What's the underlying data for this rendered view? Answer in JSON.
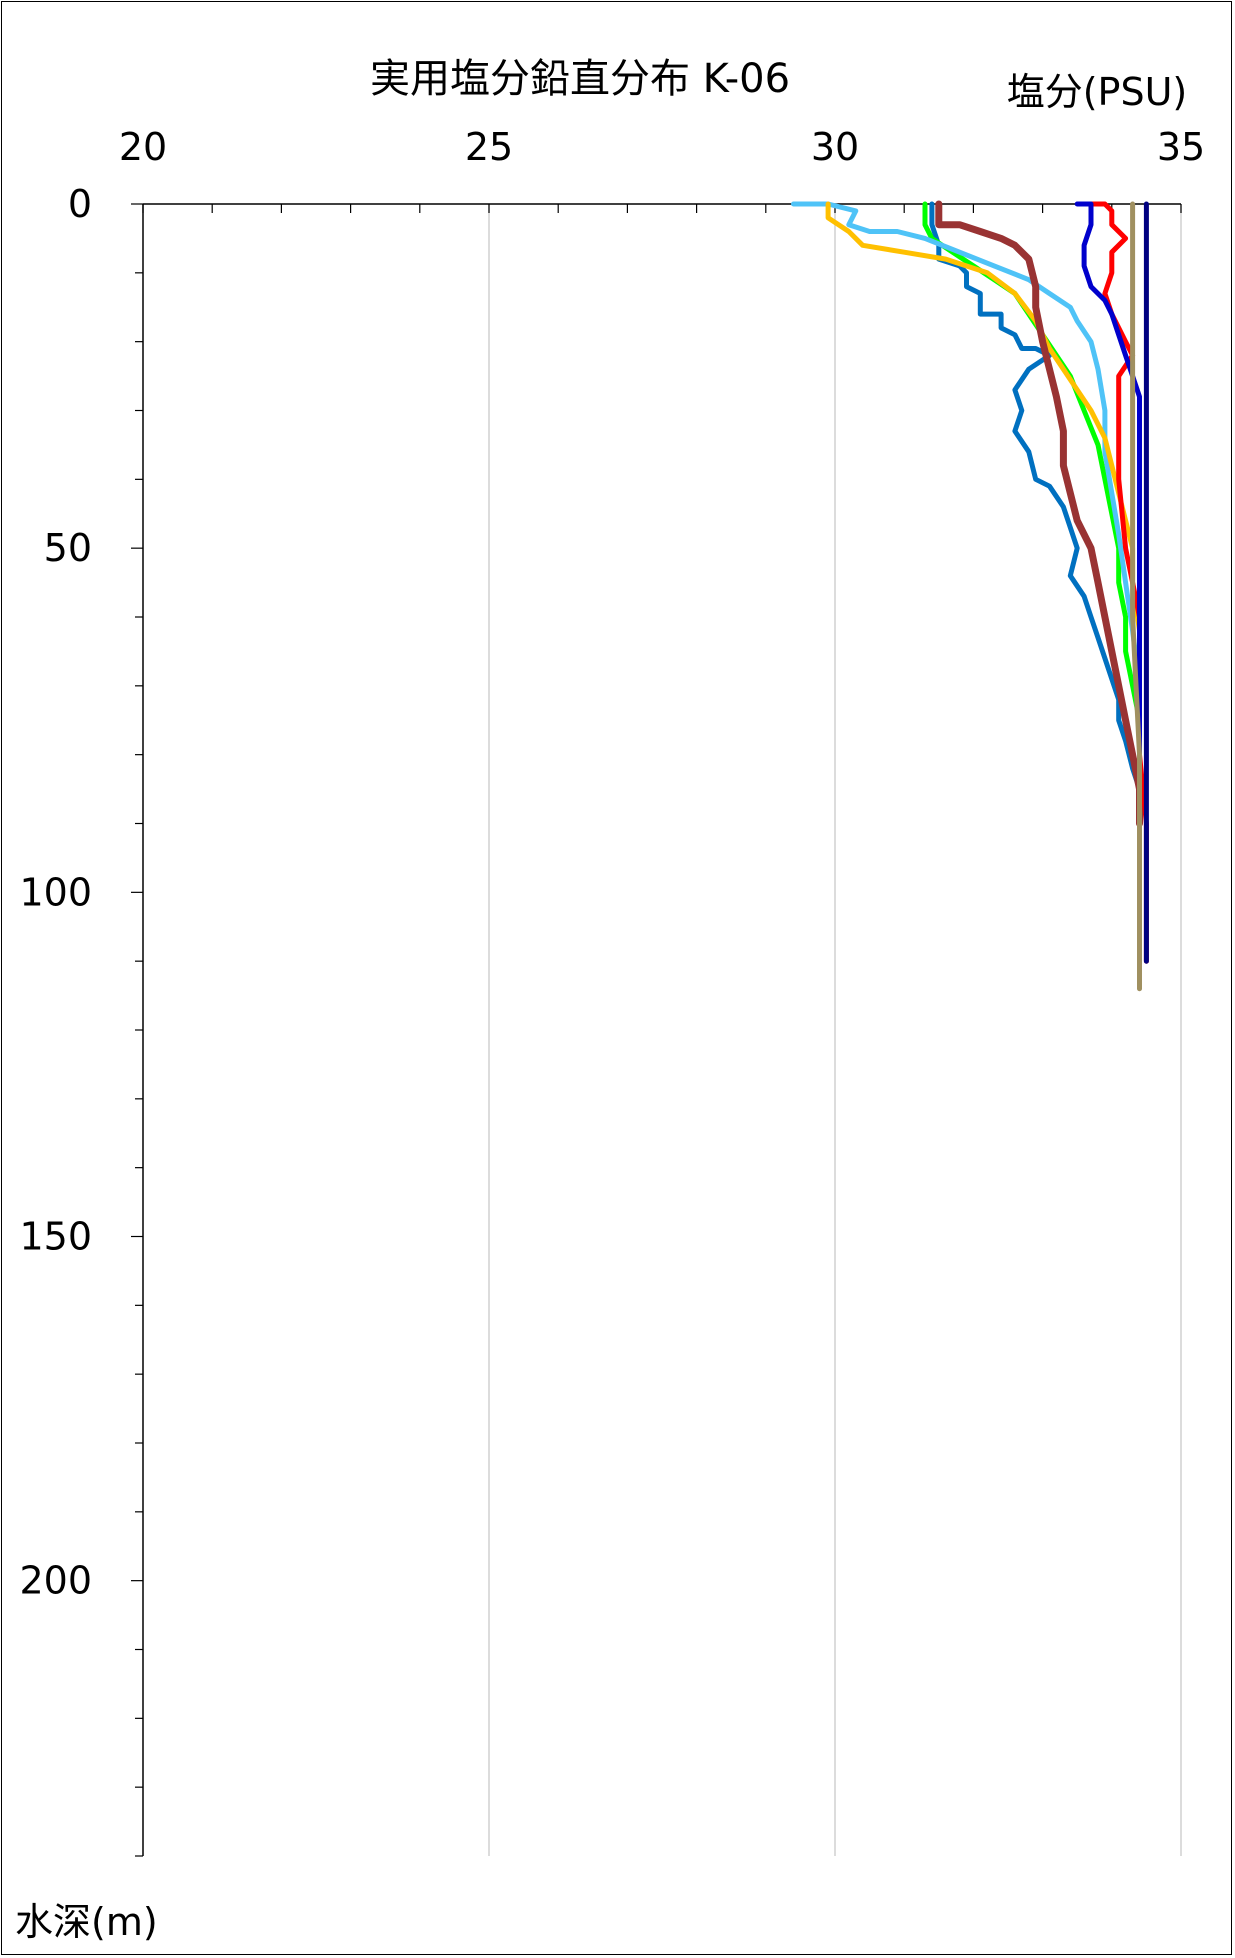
{
  "chart_data": {
    "type": "line",
    "title": "実用塩分鉛直分布 K-06",
    "xlabel": "塩分(PSU)",
    "ylabel": "水深(m)",
    "xlim": [
      20,
      35
    ],
    "ylim": [
      0,
      240
    ],
    "y_inverted": true,
    "x_axis_position": "top",
    "x_ticks": [
      "20",
      "25",
      "30",
      "35"
    ],
    "y_ticks": [
      "0",
      "50",
      "100",
      "150",
      "200"
    ],
    "grid": "vertical",
    "series": [
      {
        "color": "#0070C0",
        "points": [
          [
            31.4,
            0
          ],
          [
            31.4,
            3
          ],
          [
            31.5,
            6
          ],
          [
            31.5,
            8
          ],
          [
            31.8,
            9
          ],
          [
            31.9,
            10
          ],
          [
            31.9,
            12
          ],
          [
            32.1,
            13
          ],
          [
            32.1,
            16
          ],
          [
            32.4,
            16
          ],
          [
            32.4,
            18
          ],
          [
            32.6,
            19
          ],
          [
            32.7,
            21
          ],
          [
            32.9,
            21
          ],
          [
            33.1,
            22
          ],
          [
            32.8,
            24
          ],
          [
            32.6,
            27
          ],
          [
            32.7,
            30
          ],
          [
            32.6,
            33
          ],
          [
            32.8,
            36
          ],
          [
            32.9,
            40
          ],
          [
            33.1,
            41
          ],
          [
            33.3,
            44
          ],
          [
            33.4,
            47
          ],
          [
            33.5,
            50
          ],
          [
            33.4,
            54
          ],
          [
            33.6,
            57
          ],
          [
            33.7,
            60
          ],
          [
            33.8,
            63
          ],
          [
            33.9,
            66
          ],
          [
            34.0,
            69
          ],
          [
            34.1,
            72
          ],
          [
            34.1,
            75
          ],
          [
            34.2,
            78
          ],
          [
            34.3,
            82
          ],
          [
            34.4,
            85
          ]
        ]
      },
      {
        "color": "#00FF00",
        "points": [
          [
            31.3,
            0
          ],
          [
            31.3,
            3
          ],
          [
            31.4,
            5
          ],
          [
            31.7,
            7
          ],
          [
            32.0,
            9
          ],
          [
            32.3,
            11
          ],
          [
            32.6,
            13
          ],
          [
            32.8,
            16
          ],
          [
            33.0,
            19
          ],
          [
            33.2,
            22
          ],
          [
            33.4,
            25
          ],
          [
            33.6,
            30
          ],
          [
            33.8,
            35
          ],
          [
            33.9,
            40
          ],
          [
            34.0,
            45
          ],
          [
            34.1,
            50
          ],
          [
            34.1,
            55
          ],
          [
            34.2,
            60
          ],
          [
            34.2,
            65
          ],
          [
            34.3,
            70
          ],
          [
            34.4,
            75
          ],
          [
            34.4,
            85
          ]
        ]
      },
      {
        "color": "#4FC3F7",
        "points": [
          [
            29.4,
            0
          ],
          [
            29.9,
            0
          ],
          [
            30.3,
            1
          ],
          [
            30.2,
            3
          ],
          [
            30.5,
            4
          ],
          [
            30.9,
            4
          ],
          [
            31.3,
            5
          ],
          [
            31.8,
            7
          ],
          [
            32.3,
            9
          ],
          [
            32.8,
            11
          ],
          [
            33.1,
            13
          ],
          [
            33.4,
            15
          ],
          [
            33.5,
            17
          ],
          [
            33.7,
            20
          ],
          [
            33.8,
            24
          ],
          [
            33.9,
            30
          ],
          [
            33.9,
            36
          ],
          [
            34.0,
            42
          ],
          [
            34.1,
            48
          ],
          [
            34.2,
            55
          ],
          [
            34.3,
            62
          ],
          [
            34.4,
            70
          ],
          [
            34.4,
            80
          ]
        ]
      },
      {
        "color": "#FFC000",
        "points": [
          [
            29.9,
            0
          ],
          [
            29.9,
            2
          ],
          [
            30.2,
            4
          ],
          [
            30.4,
            6
          ],
          [
            31.0,
            7
          ],
          [
            31.6,
            8
          ],
          [
            32.2,
            10
          ],
          [
            32.6,
            13
          ],
          [
            32.9,
            17
          ],
          [
            33.1,
            21
          ],
          [
            33.3,
            24
          ],
          [
            33.5,
            27
          ],
          [
            33.7,
            30
          ],
          [
            33.9,
            34
          ],
          [
            34.0,
            38
          ],
          [
            34.1,
            42
          ],
          [
            34.2,
            46
          ],
          [
            34.3,
            50
          ],
          [
            34.3,
            55
          ],
          [
            34.4,
            62
          ],
          [
            34.4,
            70
          ],
          [
            34.4,
            80
          ]
        ]
      },
      {
        "color": "#993333",
        "points": [
          [
            31.5,
            0
          ],
          [
            31.5,
            3
          ],
          [
            31.8,
            3
          ],
          [
            32.1,
            4
          ],
          [
            32.4,
            5
          ],
          [
            32.6,
            6
          ],
          [
            32.8,
            8
          ],
          [
            32.9,
            12
          ],
          [
            32.9,
            15
          ],
          [
            33.0,
            20
          ],
          [
            33.1,
            24
          ],
          [
            33.2,
            28
          ],
          [
            33.3,
            33
          ],
          [
            33.3,
            38
          ],
          [
            33.4,
            42
          ],
          [
            33.5,
            46
          ],
          [
            33.7,
            50
          ],
          [
            33.8,
            55
          ],
          [
            33.9,
            60
          ],
          [
            34.0,
            65
          ],
          [
            34.1,
            70
          ],
          [
            34.2,
            75
          ],
          [
            34.3,
            80
          ],
          [
            34.4,
            85
          ],
          [
            34.4,
            90
          ]
        ]
      },
      {
        "color": "#FF0000",
        "points": [
          [
            33.6,
            0
          ],
          [
            33.9,
            0
          ],
          [
            34.0,
            1
          ],
          [
            34.0,
            3
          ],
          [
            34.2,
            5
          ],
          [
            34.0,
            7
          ],
          [
            34.0,
            10
          ],
          [
            33.9,
            13
          ],
          [
            34.0,
            16
          ],
          [
            34.1,
            18
          ],
          [
            34.2,
            20
          ],
          [
            34.3,
            22
          ],
          [
            34.1,
            25
          ],
          [
            34.1,
            30
          ],
          [
            34.1,
            40
          ],
          [
            34.2,
            50
          ],
          [
            34.3,
            55
          ],
          [
            34.4,
            60
          ],
          [
            34.4,
            80
          ],
          [
            34.5,
            90
          ],
          [
            34.5,
            110
          ]
        ]
      },
      {
        "color": "#0000CC",
        "points": [
          [
            33.5,
            0
          ],
          [
            33.7,
            0
          ],
          [
            33.7,
            3
          ],
          [
            33.6,
            6
          ],
          [
            33.6,
            9
          ],
          [
            33.7,
            12
          ],
          [
            33.9,
            14
          ],
          [
            34.0,
            16
          ],
          [
            34.1,
            19
          ],
          [
            34.2,
            22
          ],
          [
            34.3,
            25
          ],
          [
            34.4,
            28
          ],
          [
            34.4,
            35
          ],
          [
            34.4,
            50
          ],
          [
            34.4,
            80
          ],
          [
            34.4,
            100
          ],
          [
            34.4,
            110
          ]
        ]
      },
      {
        "color": "#000080",
        "points": [
          [
            34.5,
            0
          ],
          [
            34.5,
            20
          ],
          [
            34.5,
            40
          ],
          [
            34.5,
            60
          ],
          [
            34.5,
            80
          ],
          [
            34.5,
            100
          ],
          [
            34.5,
            110
          ]
        ]
      },
      {
        "color": "#A09060",
        "points": [
          [
            34.3,
            0
          ],
          [
            34.3,
            20
          ],
          [
            34.3,
            40
          ],
          [
            34.3,
            60
          ],
          [
            34.4,
            80
          ],
          [
            34.4,
            100
          ],
          [
            34.4,
            114
          ]
        ]
      }
    ]
  }
}
